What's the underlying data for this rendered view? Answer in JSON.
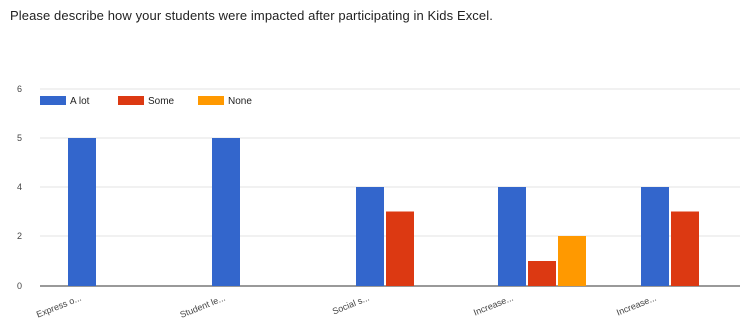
{
  "page": {
    "title": "Please describe how your students were impacted after participating in Kids Excel."
  },
  "chart_data": {
    "type": "bar",
    "title": "",
    "xlabel": "",
    "ylabel": "",
    "categories": [
      "Express o...",
      "Student le...",
      "Social s...",
      "Increase...",
      "Increase..."
    ],
    "series": [
      {
        "name": "A lot",
        "color": "#3366cc",
        "values": [
          5,
          5,
          4,
          4,
          4
        ]
      },
      {
        "name": "Some",
        "color": "#dc3912",
        "values": [
          0,
          0,
          3,
          1,
          3
        ]
      },
      {
        "name": "None",
        "color": "#ff9900",
        "values": [
          0,
          0,
          0,
          2,
          0
        ]
      }
    ],
    "yticks": [
      0,
      2,
      4,
      5,
      6
    ],
    "ytick_labels": [
      "0",
      "2",
      "4",
      "5",
      "6"
    ],
    "y_scale_breakpoints": [
      [
        0,
        0
      ],
      [
        2,
        2
      ],
      [
        4,
        4
      ],
      [
        5,
        5
      ],
      [
        6,
        6
      ]
    ],
    "ylim": [
      0,
      6
    ],
    "grid": true,
    "legend_position": "top-left"
  }
}
